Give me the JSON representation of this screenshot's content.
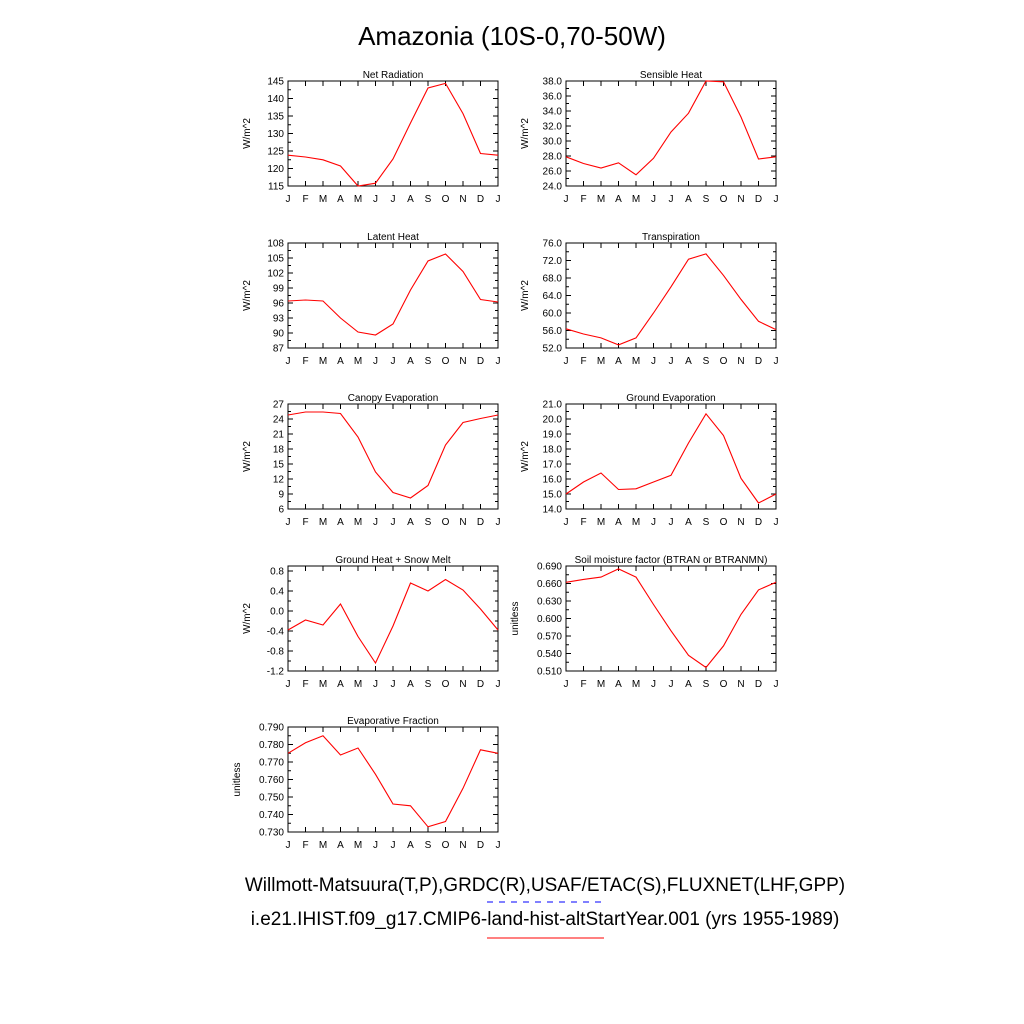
{
  "title": "Amazonia (10S-0,70-50W)",
  "legend": [
    {
      "text": "Willmott-Matsuura(T,P),GRDC(R),USAF/ETAC(S),FLUXNET(LHF,GPP)",
      "color": "#0000ff",
      "dash": true
    },
    {
      "text": "i.e21.IHIST.f09_g17.CMIP6-land-hist-altStartYear.001 (yrs 1955-1989)",
      "color": "#ff0000",
      "dash": false
    }
  ],
  "colors": {
    "model": "#ff0000",
    "obs": "#0000ff"
  },
  "chart_data": [
    {
      "type": "line",
      "title": "Net Radiation",
      "ylabel": "W/m^2",
      "ylim": [
        115,
        145
      ],
      "yticks": [
        "115",
        "120",
        "125",
        "130",
        "135",
        "140",
        "145"
      ],
      "categories": [
        "J",
        "F",
        "M",
        "A",
        "M",
        "J",
        "J",
        "A",
        "S",
        "O",
        "N",
        "D",
        "J"
      ],
      "values": [
        123.8,
        123.3,
        122.5,
        120.7,
        115.0,
        115.8,
        122.7,
        133.0,
        143.0,
        144.3,
        135.7,
        124.3,
        123.8
      ]
    },
    {
      "type": "line",
      "title": "Sensible Heat",
      "ylabel": "W/m^2",
      "ylim": [
        24,
        38
      ],
      "yticks": [
        "24.0",
        "26.0",
        "28.0",
        "30.0",
        "32.0",
        "34.0",
        "36.0",
        "38.0"
      ],
      "categories": [
        "J",
        "F",
        "M",
        "A",
        "M",
        "J",
        "J",
        "A",
        "S",
        "O",
        "N",
        "D",
        "J"
      ],
      "values": [
        27.9,
        27.0,
        26.4,
        27.1,
        25.5,
        27.7,
        31.2,
        33.7,
        38.0,
        37.9,
        33.2,
        27.6,
        27.9
      ]
    },
    {
      "type": "line",
      "title": "Latent Heat",
      "ylabel": "W/m^2",
      "ylim": [
        87,
        108
      ],
      "yticks": [
        "87",
        "90",
        "93",
        "96",
        "99",
        "102",
        "105",
        "108"
      ],
      "categories": [
        "J",
        "F",
        "M",
        "A",
        "M",
        "J",
        "J",
        "A",
        "S",
        "O",
        "N",
        "D",
        "J"
      ],
      "values": [
        96.4,
        96.6,
        96.4,
        93.0,
        90.2,
        89.6,
        91.8,
        98.6,
        104.4,
        105.8,
        102.3,
        96.7,
        96.2
      ]
    },
    {
      "type": "line",
      "title": "Transpiration",
      "ylabel": "W/m^2",
      "ylim": [
        52,
        76
      ],
      "yticks": [
        "52.0",
        "56.0",
        "60.0",
        "64.0",
        "68.0",
        "72.0",
        "76.0"
      ],
      "categories": [
        "J",
        "F",
        "M",
        "A",
        "M",
        "J",
        "J",
        "A",
        "S",
        "O",
        "N",
        "D",
        "J"
      ],
      "values": [
        56.4,
        55.2,
        54.3,
        52.7,
        54.3,
        60.0,
        66.0,
        72.3,
        73.5,
        68.6,
        63.1,
        58.1,
        56.2
      ]
    },
    {
      "type": "line",
      "title": "Canopy Evaporation",
      "ylabel": "W/m^2",
      "ylim": [
        6,
        27
      ],
      "yticks": [
        "6",
        "9",
        "12",
        "15",
        "18",
        "21",
        "24",
        "27"
      ],
      "categories": [
        "J",
        "F",
        "M",
        "A",
        "M",
        "J",
        "J",
        "A",
        "S",
        "O",
        "N",
        "D",
        "J"
      ],
      "values": [
        24.8,
        25.4,
        25.4,
        25.1,
        20.4,
        13.4,
        9.3,
        8.2,
        10.7,
        18.8,
        23.3,
        24.1,
        24.8
      ]
    },
    {
      "type": "line",
      "title": "Ground Evaporation",
      "ylabel": "W/m^2",
      "ylim": [
        14,
        21
      ],
      "yticks": [
        "14.0",
        "15.0",
        "16.0",
        "17.0",
        "18.0",
        "19.0",
        "20.0",
        "21.0"
      ],
      "categories": [
        "J",
        "F",
        "M",
        "A",
        "M",
        "J",
        "J",
        "A",
        "S",
        "O",
        "N",
        "D",
        "J"
      ],
      "values": [
        15.0,
        15.8,
        16.4,
        15.3,
        15.35,
        15.8,
        16.25,
        18.4,
        20.35,
        18.9,
        16.05,
        14.4,
        15.0
      ]
    },
    {
      "type": "line",
      "title": "Ground Heat + Snow Melt",
      "ylabel": "W/m^2",
      "ylim": [
        -1.2,
        0.9
      ],
      "yticks": [
        "-1.2",
        "-0.8",
        "-0.4",
        "0.0",
        "0.4",
        "0.8"
      ],
      "ytickvals": [
        -1.2,
        -0.8,
        -0.4,
        0.0,
        0.4,
        0.8
      ],
      "categories": [
        "J",
        "F",
        "M",
        "A",
        "M",
        "J",
        "J",
        "A",
        "S",
        "O",
        "N",
        "D",
        "J"
      ],
      "values": [
        -0.38,
        -0.18,
        -0.28,
        0.14,
        -0.51,
        -1.04,
        -0.3,
        0.56,
        0.4,
        0.63,
        0.42,
        0.04,
        -0.38
      ]
    },
    {
      "type": "line",
      "title": "Soil moisture factor (BTRAN or BTRANMN)",
      "ylabel": "unitless",
      "ylim": [
        0.51,
        0.69
      ],
      "yticks": [
        "0.510",
        "0.540",
        "0.570",
        "0.600",
        "0.630",
        "0.660",
        "0.690"
      ],
      "categories": [
        "J",
        "F",
        "M",
        "A",
        "M",
        "J",
        "J",
        "A",
        "S",
        "O",
        "N",
        "D",
        "J"
      ],
      "values": [
        0.662,
        0.667,
        0.671,
        0.685,
        0.671,
        0.624,
        0.579,
        0.537,
        0.516,
        0.553,
        0.607,
        0.649,
        0.662
      ]
    },
    {
      "type": "line",
      "title": "Evaporative Fraction",
      "ylabel": "unitless",
      "ylim": [
        0.73,
        0.79
      ],
      "yticks": [
        "0.730",
        "0.740",
        "0.750",
        "0.760",
        "0.770",
        "0.780",
        "0.790"
      ],
      "categories": [
        "J",
        "F",
        "M",
        "A",
        "M",
        "J",
        "J",
        "A",
        "S",
        "O",
        "N",
        "D",
        "J"
      ],
      "values": [
        0.775,
        0.781,
        0.785,
        0.774,
        0.778,
        0.763,
        0.746,
        0.745,
        0.733,
        0.736,
        0.755,
        0.777,
        0.775
      ]
    }
  ]
}
